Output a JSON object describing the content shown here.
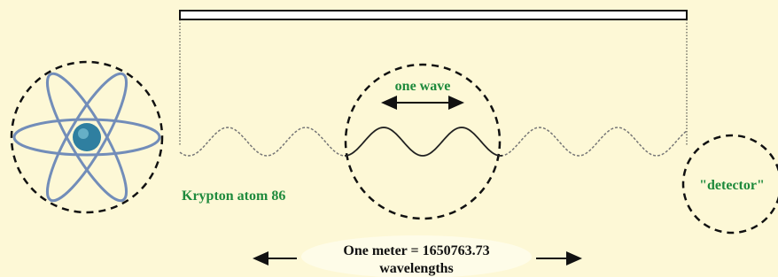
{
  "labels": {
    "wave": "one wave",
    "atom": "Krypton atom 86",
    "detector": "\"detector\"",
    "meter_line1": "One meter = 1650763.73",
    "meter_line2": "wavelengths"
  }
}
